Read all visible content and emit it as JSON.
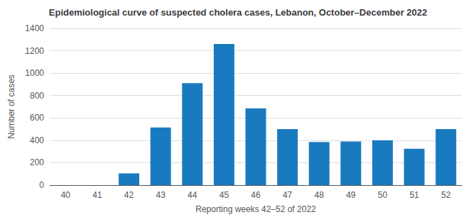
{
  "chart_data": {
    "type": "bar",
    "title": "Epidemiological curve of suspected cholera cases, Lebanon, October–December 2022",
    "xlabel": "Reporting weeks 42–52 of 2022",
    "ylabel": "Number of cases",
    "categories": [
      "40",
      "41",
      "42",
      "43",
      "44",
      "45",
      "46",
      "47",
      "48",
      "49",
      "50",
      "51",
      "52"
    ],
    "values": [
      0,
      0,
      105,
      515,
      910,
      1260,
      685,
      500,
      385,
      390,
      400,
      325,
      500
    ],
    "color": "#1a7abf",
    "ylim": [
      0,
      1400
    ],
    "yticks": [
      0,
      200,
      400,
      600,
      800,
      1000,
      1200,
      1400
    ],
    "grid": true
  }
}
